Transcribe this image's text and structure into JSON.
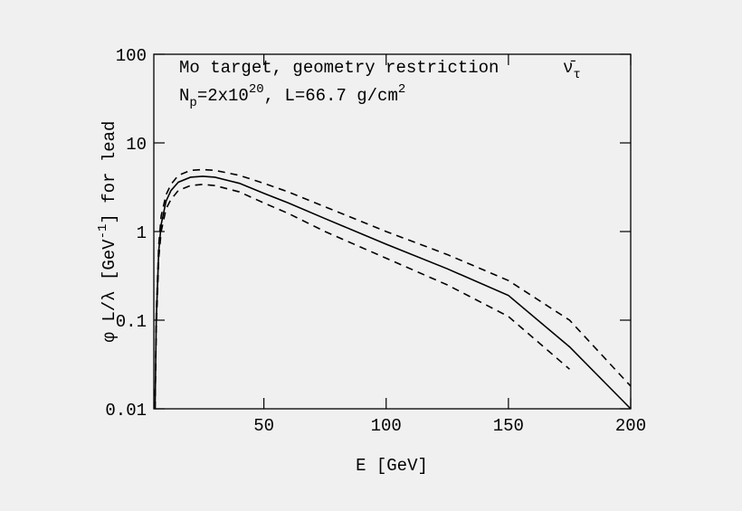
{
  "chart_data": {
    "type": "line",
    "annotations": {
      "line1": "Mo target, geometry restriction",
      "line2": [
        "N",
        "p",
        "=2x10",
        "20",
        ", L=66.7 g/cm",
        "2"
      ],
      "particle": [
        "ν̄",
        "τ"
      ]
    },
    "xlabel": "E [GeV]",
    "ylabel": [
      "φ L/λ [GeV",
      "-1",
      "] for lead"
    ],
    "x": [
      5.5,
      6,
      7,
      8,
      10,
      12,
      15,
      20,
      25,
      30,
      40,
      50,
      60,
      75,
      100,
      125,
      150,
      175,
      200
    ],
    "series": [
      {
        "color": "#000000",
        "dashed": false,
        "values": [
          0.01,
          0.1,
          0.6,
          1.2,
          2.2,
          2.9,
          3.6,
          4.1,
          4.2,
          4.1,
          3.5,
          2.7,
          2.1,
          1.4,
          0.72,
          0.38,
          0.19,
          0.05,
          0.01
        ]
      },
      {
        "color": "#000000",
        "dashed": true,
        "values": [
          0.01,
          0.12,
          0.7,
          1.5,
          2.6,
          3.4,
          4.3,
          4.9,
          5.0,
          4.9,
          4.3,
          3.5,
          2.8,
          1.9,
          1.0,
          0.55,
          0.28,
          0.1,
          0.018
        ]
      },
      {
        "color": "#000000",
        "dashed": true,
        "values": [
          0.01,
          0.08,
          0.5,
          1.0,
          1.8,
          2.3,
          2.9,
          3.3,
          3.4,
          3.3,
          2.8,
          2.1,
          1.6,
          1.0,
          0.5,
          0.25,
          0.11,
          0.028,
          null
        ]
      }
    ],
    "xlim": [
      5,
      200
    ],
    "xticks": [
      50,
      100,
      150,
      200
    ],
    "ylim": [
      0.01,
      100
    ],
    "yticks": [
      0.01,
      0.1,
      1,
      10,
      100
    ],
    "ylog": true
  }
}
